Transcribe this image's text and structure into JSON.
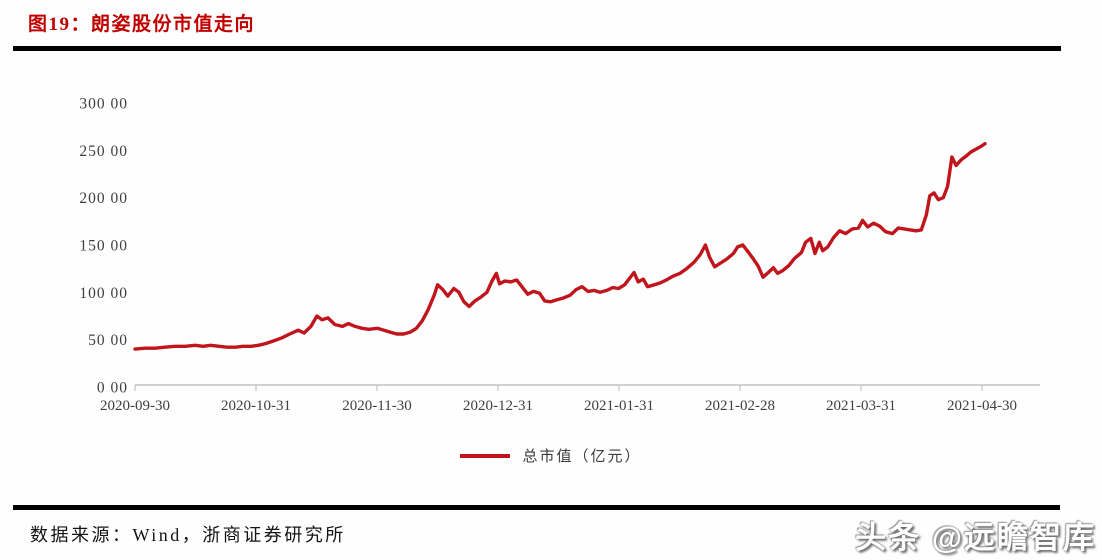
{
  "header": {
    "title": "图19：朗姿股份市值走向"
  },
  "footer": {
    "source": "数据来源：Wind，浙商证券研究所",
    "watermark": "头条 @远瞻智库"
  },
  "colors": {
    "title_red": "#c00000",
    "line_red": "#c0151c",
    "axis_gray": "#c2c2c2",
    "tick_text": "#3f3f3f",
    "divider_black": "#000000"
  },
  "chart_data": {
    "type": "line",
    "title": "朗姿股份市值走向",
    "xlabel": "",
    "ylabel": "",
    "ylim": [
      0,
      300
    ],
    "grid": false,
    "x_range": [
      "2020-09-30",
      "2021-04-30"
    ],
    "y_ticks": [
      {
        "value": 0,
        "label": "0 00"
      },
      {
        "value": 50,
        "label": "50 00"
      },
      {
        "value": 100,
        "label": "100 00"
      },
      {
        "value": 150,
        "label": "150 00"
      },
      {
        "value": 200,
        "label": "200 00"
      },
      {
        "value": 250,
        "label": "250 00"
      },
      {
        "value": 300,
        "label": "300 00"
      }
    ],
    "x_tick_labels": [
      "2020-09-30",
      "2020-10-31",
      "2020-11-30",
      "2020-12-31",
      "2021-01-31",
      "2021-02-28",
      "2021-03-31",
      "2021-04-30"
    ],
    "legend": {
      "position": "bottom",
      "entries": [
        {
          "label": "总市值（亿元）",
          "color": "#c0151c"
        }
      ]
    },
    "series": [
      {
        "name": "总市值（亿元）",
        "color": "#c0151c",
        "points": [
          [
            0,
            40
          ],
          [
            0.012,
            41
          ],
          [
            0.024,
            41
          ],
          [
            0.035,
            42
          ],
          [
            0.047,
            43
          ],
          [
            0.059,
            43
          ],
          [
            0.071,
            44
          ],
          [
            0.08,
            43
          ],
          [
            0.089,
            44
          ],
          [
            0.099,
            43
          ],
          [
            0.108,
            42
          ],
          [
            0.118,
            42
          ],
          [
            0.127,
            43
          ],
          [
            0.137,
            43
          ],
          [
            0.145,
            44
          ],
          [
            0.154,
            46
          ],
          [
            0.164,
            49
          ],
          [
            0.173,
            52
          ],
          [
            0.182,
            56
          ],
          [
            0.192,
            60
          ],
          [
            0.199,
            57
          ],
          [
            0.207,
            64
          ],
          [
            0.214,
            75
          ],
          [
            0.22,
            71
          ],
          [
            0.227,
            73
          ],
          [
            0.235,
            66
          ],
          [
            0.244,
            64
          ],
          [
            0.251,
            67
          ],
          [
            0.259,
            64
          ],
          [
            0.267,
            62
          ],
          [
            0.275,
            61
          ],
          [
            0.285,
            62
          ],
          [
            0.293,
            60
          ],
          [
            0.3,
            58
          ],
          [
            0.308,
            56
          ],
          [
            0.316,
            56
          ],
          [
            0.324,
            58
          ],
          [
            0.331,
            62
          ],
          [
            0.338,
            70
          ],
          [
            0.345,
            82
          ],
          [
            0.352,
            97
          ],
          [
            0.356,
            108
          ],
          [
            0.362,
            103
          ],
          [
            0.368,
            96
          ],
          [
            0.375,
            104
          ],
          [
            0.381,
            100
          ],
          [
            0.387,
            90
          ],
          [
            0.393,
            85
          ],
          [
            0.4,
            91
          ],
          [
            0.407,
            95
          ],
          [
            0.414,
            100
          ],
          [
            0.42,
            112
          ],
          [
            0.425,
            120
          ],
          [
            0.429,
            109
          ],
          [
            0.435,
            112
          ],
          [
            0.442,
            111
          ],
          [
            0.449,
            113
          ],
          [
            0.456,
            105
          ],
          [
            0.462,
            98
          ],
          [
            0.469,
            101
          ],
          [
            0.476,
            99
          ],
          [
            0.482,
            91
          ],
          [
            0.489,
            90
          ],
          [
            0.496,
            92
          ],
          [
            0.504,
            94
          ],
          [
            0.512,
            97
          ],
          [
            0.519,
            103
          ],
          [
            0.526,
            106
          ],
          [
            0.533,
            101
          ],
          [
            0.54,
            102
          ],
          [
            0.547,
            100
          ],
          [
            0.555,
            102
          ],
          [
            0.562,
            105
          ],
          [
            0.569,
            104
          ],
          [
            0.576,
            108
          ],
          [
            0.582,
            115
          ],
          [
            0.587,
            121
          ],
          [
            0.592,
            111
          ],
          [
            0.598,
            114
          ],
          [
            0.603,
            106
          ],
          [
            0.611,
            108
          ],
          [
            0.618,
            110
          ],
          [
            0.625,
            113
          ],
          [
            0.633,
            117
          ],
          [
            0.641,
            120
          ],
          [
            0.649,
            125
          ],
          [
            0.658,
            132
          ],
          [
            0.665,
            140
          ],
          [
            0.671,
            150
          ],
          [
            0.676,
            137
          ],
          [
            0.682,
            127
          ],
          [
            0.689,
            131
          ],
          [
            0.696,
            135
          ],
          [
            0.704,
            141
          ],
          [
            0.709,
            148
          ],
          [
            0.715,
            150
          ],
          [
            0.721,
            143
          ],
          [
            0.727,
            136
          ],
          [
            0.733,
            128
          ],
          [
            0.739,
            116
          ],
          [
            0.745,
            121
          ],
          [
            0.751,
            126
          ],
          [
            0.756,
            120
          ],
          [
            0.762,
            123
          ],
          [
            0.769,
            128
          ],
          [
            0.776,
            136
          ],
          [
            0.784,
            142
          ],
          [
            0.789,
            153
          ],
          [
            0.795,
            157
          ],
          [
            0.8,
            141
          ],
          [
            0.805,
            153
          ],
          [
            0.809,
            144
          ],
          [
            0.815,
            148
          ],
          [
            0.822,
            158
          ],
          [
            0.829,
            165
          ],
          [
            0.836,
            162
          ],
          [
            0.844,
            167
          ],
          [
            0.851,
            168
          ],
          [
            0.856,
            176
          ],
          [
            0.862,
            169
          ],
          [
            0.869,
            173
          ],
          [
            0.876,
            170
          ],
          [
            0.883,
            164
          ],
          [
            0.891,
            162
          ],
          [
            0.898,
            168
          ],
          [
            0.905,
            167
          ],
          [
            0.912,
            166
          ],
          [
            0.919,
            165
          ],
          [
            0.925,
            166
          ],
          [
            0.931,
            182
          ],
          [
            0.935,
            202
          ],
          [
            0.94,
            205
          ],
          [
            0.945,
            198
          ],
          [
            0.951,
            200
          ],
          [
            0.956,
            212
          ],
          [
            0.961,
            243
          ],
          [
            0.966,
            234
          ],
          [
            0.972,
            240
          ],
          [
            0.978,
            244
          ],
          [
            0.983,
            248
          ],
          [
            0.989,
            251
          ],
          [
            0.995,
            254
          ],
          [
            1,
            257
          ]
        ]
      }
    ]
  }
}
